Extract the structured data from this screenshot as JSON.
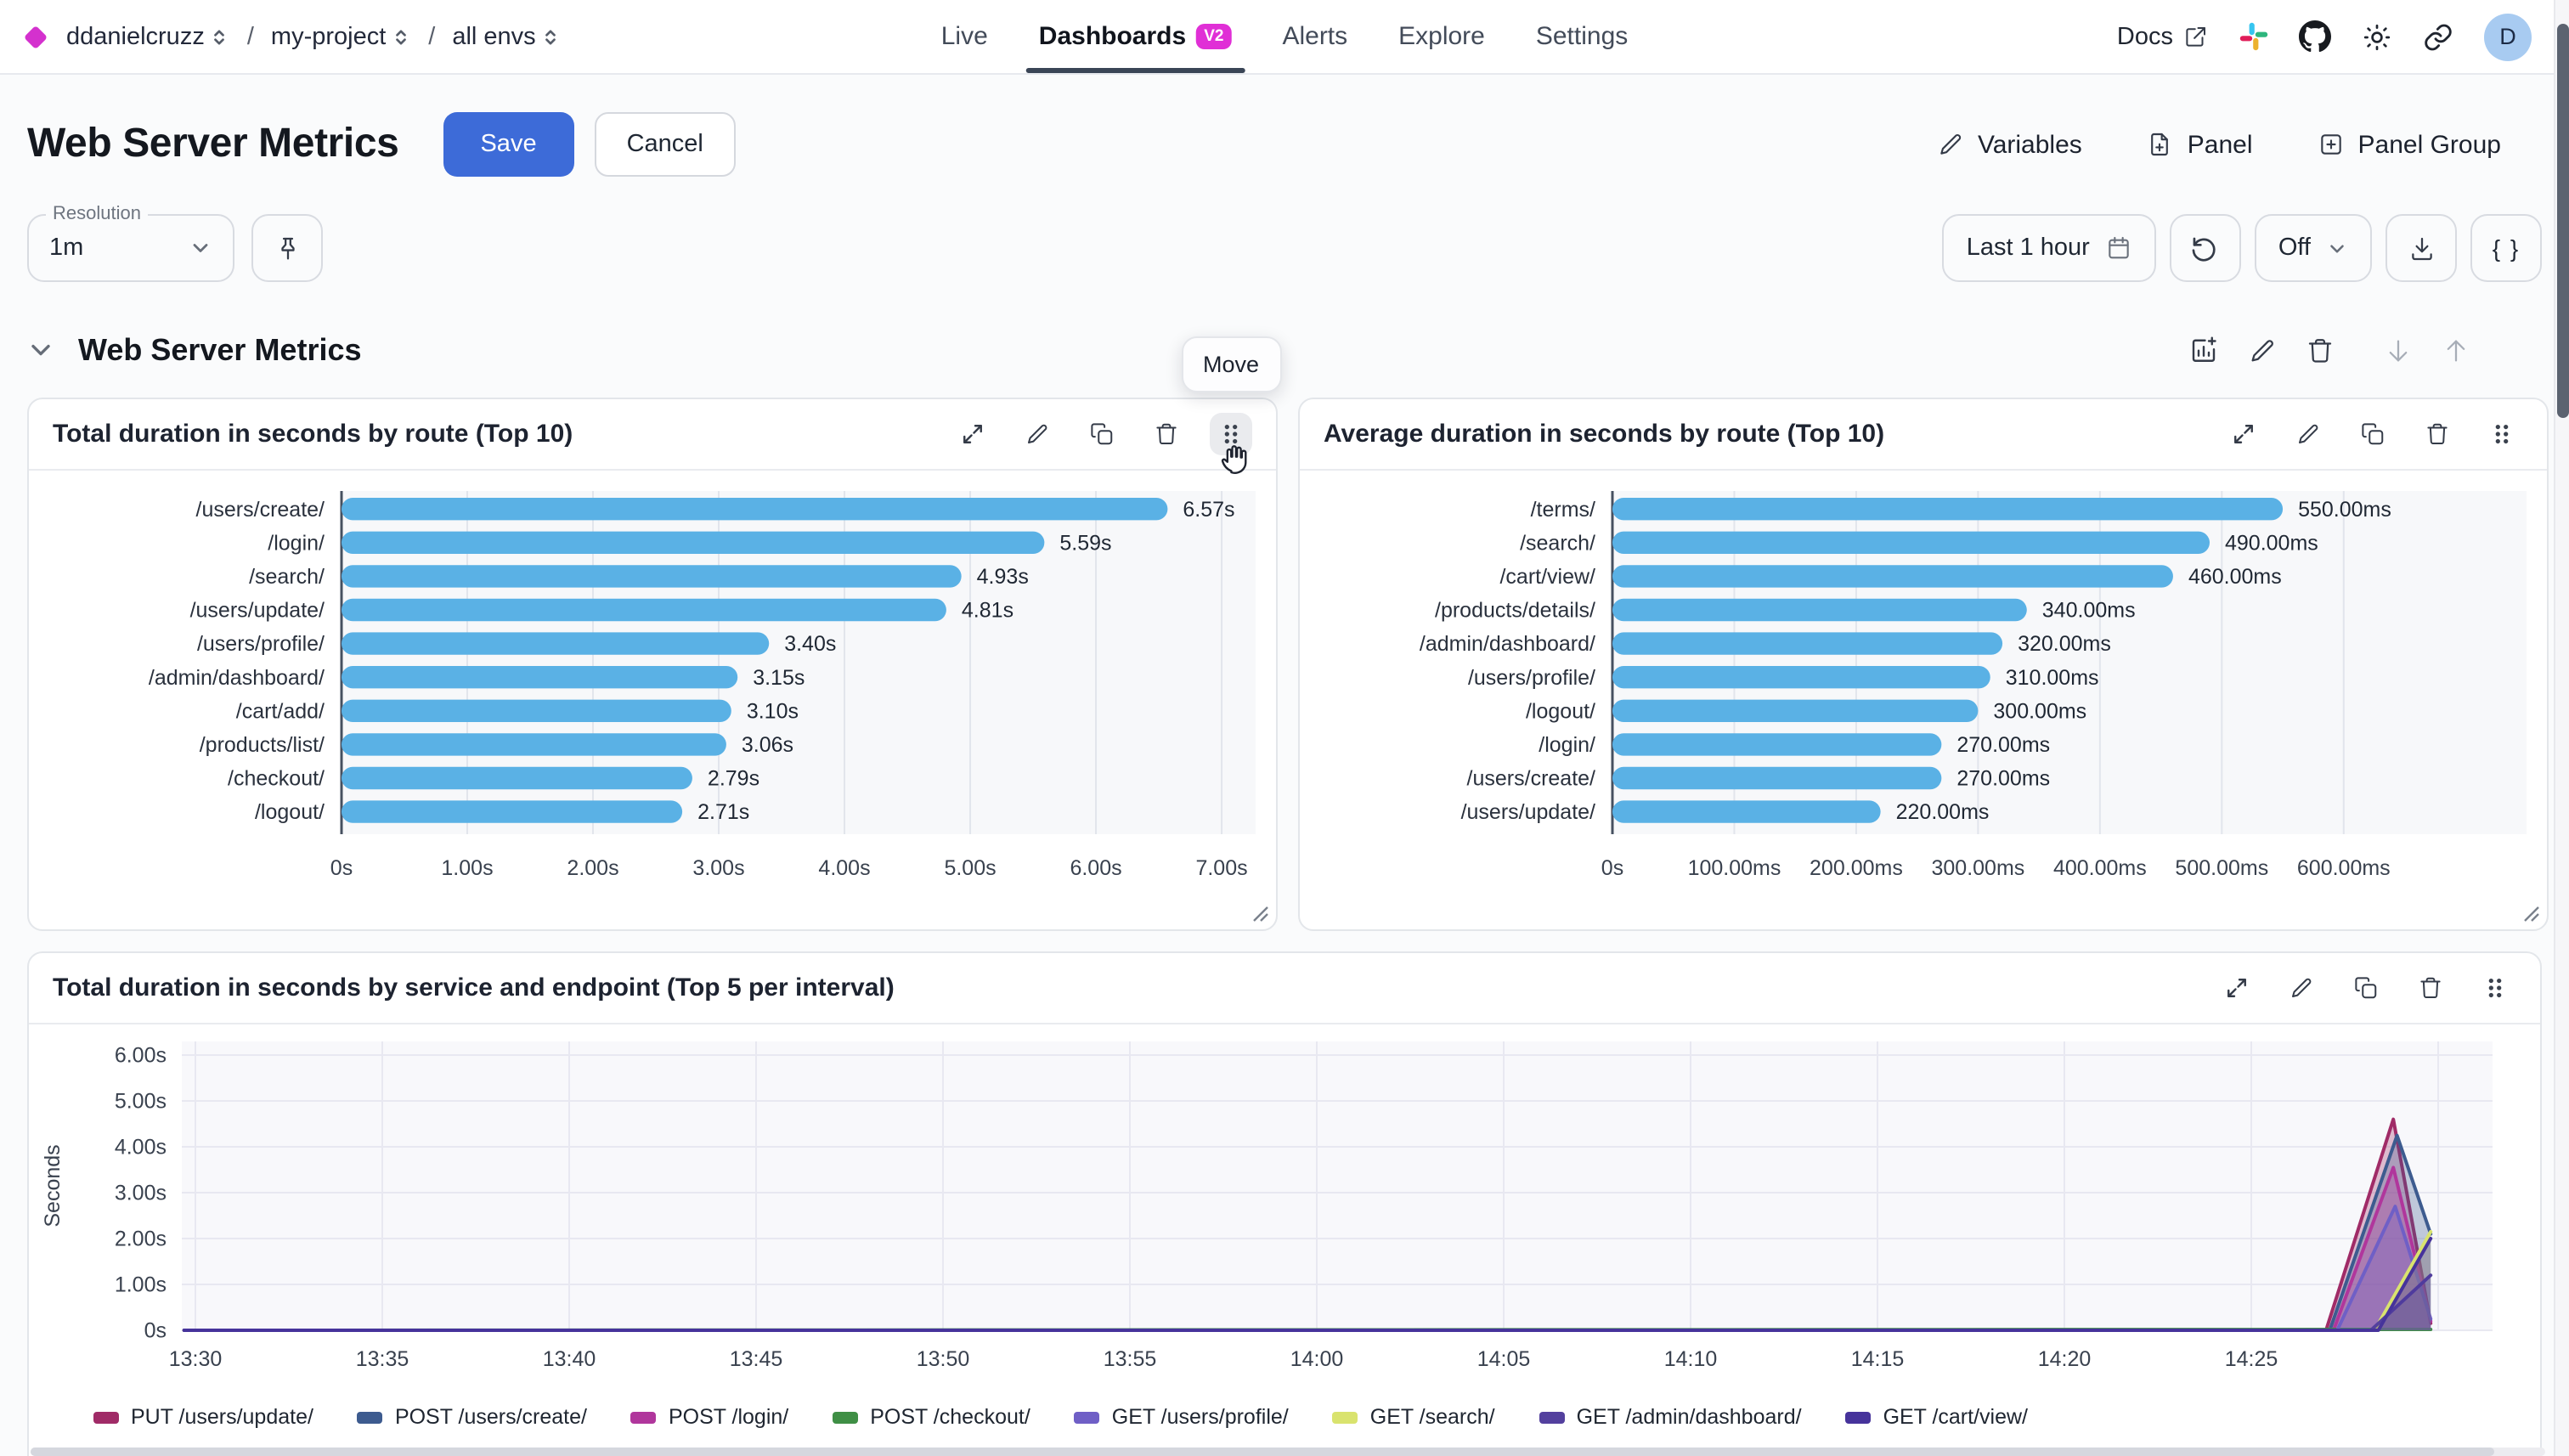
{
  "nav": {
    "breadcrumb": [
      "ddanielcruzz",
      "my-project",
      "all envs"
    ],
    "tabs": [
      {
        "label": "Live",
        "active": false
      },
      {
        "label": "Dashboards",
        "active": true,
        "badge": "V2"
      },
      {
        "label": "Alerts",
        "active": false
      },
      {
        "label": "Explore",
        "active": false
      },
      {
        "label": "Settings",
        "active": false
      }
    ],
    "docs_label": "Docs",
    "avatar_initial": "D"
  },
  "header": {
    "title": "Web Server Metrics",
    "save_label": "Save",
    "cancel_label": "Cancel",
    "variables_label": "Variables",
    "panel_label": "Panel",
    "panel_group_label": "Panel Group"
  },
  "toolbar": {
    "resolution_label": "Resolution",
    "resolution_value": "1m",
    "time_range_label": "Last 1 hour",
    "auto_refresh_value": "Off",
    "query_button_label": "{ }"
  },
  "section": {
    "title": "Web Server Metrics",
    "move_tooltip": "Move"
  },
  "panels": [
    {
      "title": "Total duration in seconds by route (Top 10)"
    },
    {
      "title": "Average duration in seconds by route (Top 10)"
    },
    {
      "title": "Total duration in seconds by service and endpoint (Top 5 per interval)"
    }
  ],
  "colors": {
    "accent_blue": "#3d6bd8",
    "badge_magenta": "#e02fd6",
    "logo_magenta": "#d431ce",
    "bar_blue": "#5ab1e5",
    "avatar_bg": "#a8cbf1"
  },
  "chart_data": [
    {
      "type": "bar",
      "orientation": "horizontal",
      "title": "Total duration in seconds by route (Top 10)",
      "categories": [
        "/users/create/",
        "/login/",
        "/search/",
        "/users/update/",
        "/users/profile/",
        "/admin/dashboard/",
        "/cart/add/",
        "/products/list/",
        "/checkout/",
        "/logout/"
      ],
      "values": [
        6.57,
        5.59,
        4.93,
        4.81,
        3.4,
        3.15,
        3.1,
        3.06,
        2.79,
        2.71
      ],
      "value_labels": [
        "6.57s",
        "5.59s",
        "4.93s",
        "4.81s",
        "3.40s",
        "3.15s",
        "3.10s",
        "3.06s",
        "2.79s",
        "2.71s"
      ],
      "x_ticks": [
        {
          "v": 0,
          "label": "0s"
        },
        {
          "v": 1,
          "label": "1.00s"
        },
        {
          "v": 2,
          "label": "2.00s"
        },
        {
          "v": 3,
          "label": "3.00s"
        },
        {
          "v": 4,
          "label": "4.00s"
        },
        {
          "v": 5,
          "label": "5.00s"
        },
        {
          "v": 6,
          "label": "6.00s"
        },
        {
          "v": 7,
          "label": "7.00s"
        }
      ],
      "xlim": [
        0,
        7.27
      ],
      "unit": "s",
      "bar_color": "#5ab1e5",
      "grid": true
    },
    {
      "type": "bar",
      "orientation": "horizontal",
      "title": "Average duration in seconds by route (Top 10)",
      "categories": [
        "/terms/",
        "/search/",
        "/cart/view/",
        "/products/details/",
        "/admin/dashboard/",
        "/users/profile/",
        "/logout/",
        "/login/",
        "/users/create/",
        "/users/update/"
      ],
      "values": [
        550,
        490,
        460,
        340,
        320,
        310,
        300,
        270,
        270,
        220
      ],
      "value_labels": [
        "550.00ms",
        "490.00ms",
        "460.00ms",
        "340.00ms",
        "320.00ms",
        "310.00ms",
        "300.00ms",
        "270.00ms",
        "270.00ms",
        "220.00ms"
      ],
      "x_ticks": [
        {
          "v": 0,
          "label": "0s"
        },
        {
          "v": 100,
          "label": "100.00ms"
        },
        {
          "v": 200,
          "label": "200.00ms"
        },
        {
          "v": 300,
          "label": "300.00ms"
        },
        {
          "v": 400,
          "label": "400.00ms"
        },
        {
          "v": 500,
          "label": "500.00ms"
        },
        {
          "v": 600,
          "label": "600.00ms"
        }
      ],
      "xlim": [
        0,
        750
      ],
      "unit": "ms",
      "bar_color": "#5ab1e5",
      "grid": true
    },
    {
      "type": "area",
      "title": "Total duration in seconds by service and endpoint (Top 5 per interval)",
      "ylabel": "Seconds",
      "ylim": [
        0,
        6.2
      ],
      "y_ticks": [
        {
          "v": 0,
          "label": "0s"
        },
        {
          "v": 1,
          "label": "1.00s"
        },
        {
          "v": 2,
          "label": "2.00s"
        },
        {
          "v": 3,
          "label": "3.00s"
        },
        {
          "v": 4,
          "label": "4.00s"
        },
        {
          "v": 5,
          "label": "5.00s"
        },
        {
          "v": 6,
          "label": "6.00s"
        }
      ],
      "x_ticks": [
        {
          "t": 0,
          "label": "13:30"
        },
        {
          "t": 5,
          "label": "13:35"
        },
        {
          "t": 10,
          "label": "13:40"
        },
        {
          "t": 15,
          "label": "13:45"
        },
        {
          "t": 20,
          "label": "13:50"
        },
        {
          "t": 25,
          "label": "13:55"
        },
        {
          "t": 30,
          "label": "14:00"
        },
        {
          "t": 35,
          "label": "14:05"
        },
        {
          "t": 40,
          "label": "14:10"
        },
        {
          "t": 45,
          "label": "14:15"
        },
        {
          "t": 50,
          "label": "14:20"
        },
        {
          "t": 55,
          "label": "14:25"
        },
        {
          "t": 60,
          "label": ""
        }
      ],
      "grid": true,
      "legend_position": "bottom",
      "series": [
        {
          "name": "PUT /users/update/",
          "color": "#a02b67",
          "points": [
            [
              -0.3,
              0
            ],
            [
              57.0,
              0
            ],
            [
              58.8,
              4.6
            ],
            [
              59.8,
              0.15
            ]
          ]
        },
        {
          "name": "POST /users/create/",
          "color": "#3d5b8f",
          "points": [
            [
              -0.3,
              0
            ],
            [
              57.1,
              0
            ],
            [
              58.9,
              4.25
            ],
            [
              59.8,
              2.1
            ]
          ]
        },
        {
          "name": "POST /login/",
          "color": "#b0369c",
          "points": [
            [
              -0.3,
              0
            ],
            [
              57.2,
              0
            ],
            [
              58.8,
              3.55
            ],
            [
              59.8,
              0.2
            ]
          ]
        },
        {
          "name": "POST /checkout/",
          "color": "#3f8f45",
          "points": [
            [
              -0.3,
              0
            ],
            [
              59.8,
              0.02
            ]
          ]
        },
        {
          "name": "GET /users/profile/",
          "color": "#6f5fc6",
          "points": [
            [
              -0.3,
              0
            ],
            [
              57.3,
              0
            ],
            [
              58.85,
              2.7
            ],
            [
              59.8,
              0.25
            ]
          ]
        },
        {
          "name": "GET /search/",
          "color": "#d9e36e",
          "points": [
            [
              -0.3,
              0
            ],
            [
              58.3,
              0
            ],
            [
              59.8,
              2.15
            ]
          ]
        },
        {
          "name": "GET /admin/dashboard/",
          "color": "#53409e",
          "points": [
            [
              -0.3,
              0
            ],
            [
              58.2,
              0
            ],
            [
              59.8,
              1.2
            ]
          ]
        },
        {
          "name": "GET /cart/view/",
          "color": "#46339b",
          "points": [
            [
              -0.3,
              0
            ],
            [
              58.4,
              0
            ],
            [
              59.8,
              2.0
            ]
          ]
        }
      ]
    }
  ]
}
